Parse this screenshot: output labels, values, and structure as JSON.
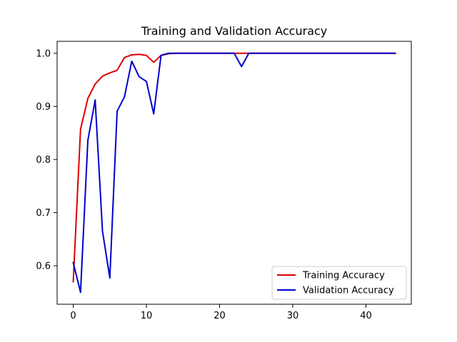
{
  "colors": {
    "training": "#dd0000",
    "validation": "#0000cc",
    "axis": "#000000",
    "legend_border": "#cccccc"
  },
  "chart_data": {
    "type": "line",
    "title": "Training and Validation Accuracy",
    "xlabel": "",
    "ylabel": "",
    "xlim": [
      -2.2,
      46.2
    ],
    "ylim": [
      0.5275,
      1.0225
    ],
    "x_ticks": [
      0,
      10,
      20,
      30,
      40
    ],
    "x_tick_labels": [
      "0",
      "10",
      "20",
      "30",
      "40"
    ],
    "y_ticks": [
      0.6,
      0.7,
      0.8,
      0.9,
      1.0
    ],
    "y_tick_labels": [
      "0.6",
      "0.7",
      "0.8",
      "0.9",
      "1.0"
    ],
    "grid": false,
    "legend_position": "lower-right",
    "x": [
      0,
      1,
      2,
      3,
      4,
      5,
      6,
      7,
      8,
      9,
      10,
      11,
      12,
      13,
      14,
      15,
      16,
      17,
      18,
      19,
      20,
      21,
      22,
      23,
      24,
      25,
      26,
      27,
      28,
      29,
      30,
      31,
      32,
      33,
      34,
      35,
      36,
      37,
      38,
      39,
      40,
      41,
      42,
      43,
      44
    ],
    "series": [
      {
        "name": "Training Accuracy",
        "color": "#dd0000",
        "values": [
          0.57,
          0.857,
          0.915,
          0.942,
          0.957,
          0.963,
          0.968,
          0.992,
          0.997,
          0.998,
          0.996,
          0.983,
          0.996,
          0.999,
          1.0,
          1.0,
          1.0,
          1.0,
          1.0,
          1.0,
          1.0,
          1.0,
          1.0,
          1.0,
          1.0,
          1.0,
          1.0,
          1.0,
          1.0,
          1.0,
          1.0,
          1.0,
          1.0,
          1.0,
          1.0,
          1.0,
          1.0,
          1.0,
          1.0,
          1.0,
          1.0,
          1.0,
          1.0,
          1.0,
          1.0
        ]
      },
      {
        "name": "Validation Accuracy",
        "color": "#0000cc",
        "values": [
          0.606,
          0.55,
          0.836,
          0.912,
          0.665,
          0.577,
          0.891,
          0.918,
          0.985,
          0.956,
          0.947,
          0.886,
          0.996,
          1.0,
          1.0,
          1.0,
          1.0,
          1.0,
          1.0,
          1.0,
          1.0,
          1.0,
          1.0,
          0.975,
          1.0,
          1.0,
          1.0,
          1.0,
          1.0,
          1.0,
          1.0,
          1.0,
          1.0,
          1.0,
          1.0,
          1.0,
          1.0,
          1.0,
          1.0,
          1.0,
          1.0,
          1.0,
          1.0,
          1.0,
          1.0
        ]
      }
    ]
  }
}
